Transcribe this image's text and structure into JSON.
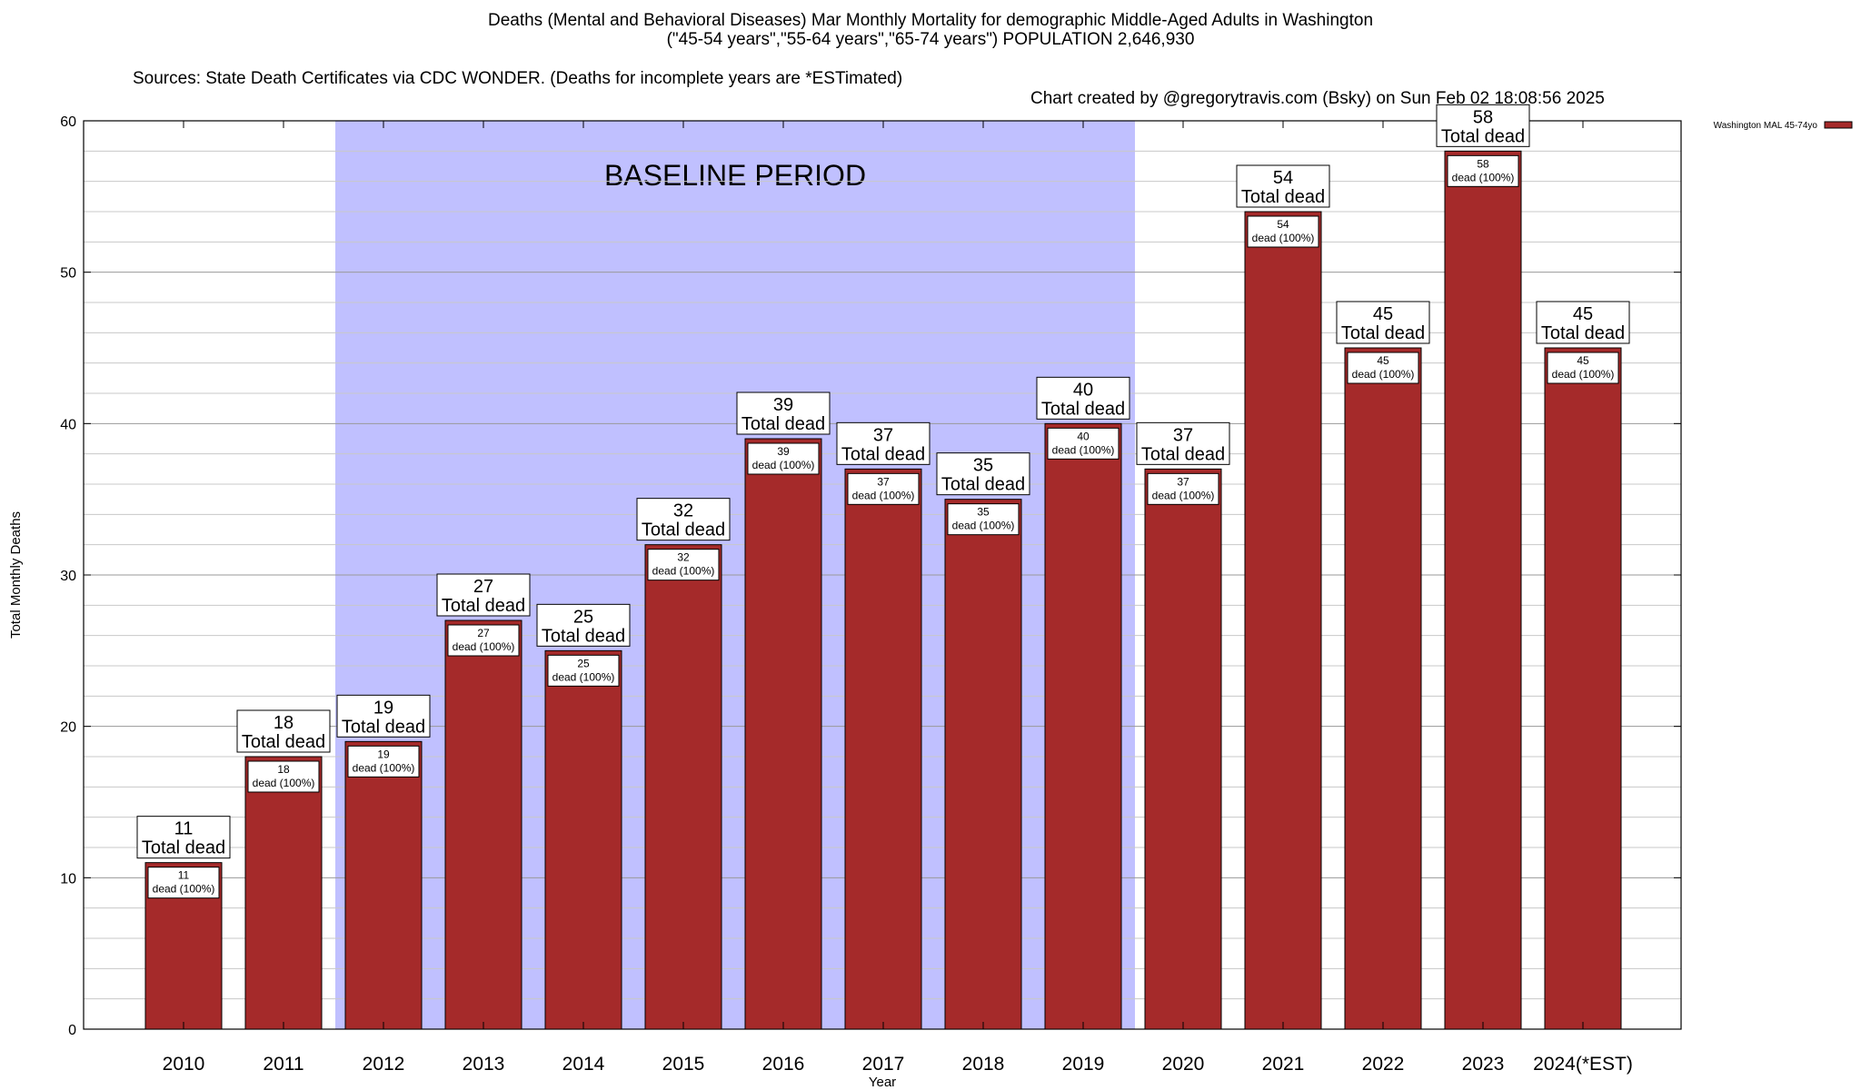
{
  "header": {
    "title": "Deaths (Mental and Behavioral Diseases) Mar Monthly Mortality for demographic Middle-Aged Adults in Washington",
    "subtitle": "(\"45-54 years\",\"55-64 years\",\"65-74 years\") POPULATION 2,646,930",
    "sources": "Sources: State Death Certificates via CDC WONDER. (Deaths for incomplete years are *ESTimated)",
    "credit": "Chart created by @gregorytravis.com (Bsky) on Sun Feb 02 18:08:56 2025"
  },
  "chart_data": {
    "type": "bar",
    "xlabel": "Year",
    "ylabel": "Total Monthly Deaths",
    "ylim": [
      0,
      60
    ],
    "yticks": [
      0,
      10,
      20,
      30,
      40,
      50,
      60
    ],
    "grid": true,
    "legend_position": "top-right",
    "categories": [
      "2010",
      "2011",
      "2012",
      "2013",
      "2014",
      "2015",
      "2016",
      "2017",
      "2018",
      "2019",
      "2020",
      "2021",
      "2022",
      "2023",
      "2024(*EST)"
    ],
    "series": [
      {
        "name": "Washington MAL 45-74yo",
        "color": "#a52a2a",
        "values": [
          11,
          18,
          19,
          27,
          25,
          32,
          39,
          37,
          35,
          40,
          37,
          54,
          45,
          58,
          45
        ]
      }
    ],
    "total_label": "Total dead",
    "inner_label": "dead (100%)",
    "baseline": {
      "label": "BASELINE PERIOD",
      "from": "2012",
      "to": "2019",
      "color": "#c0c0ff"
    }
  }
}
